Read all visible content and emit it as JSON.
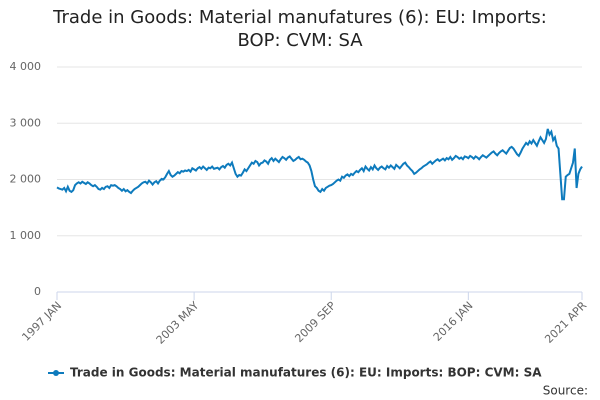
{
  "chart_data": {
    "type": "line",
    "title": "Trade in Goods: Material manufatures (6): EU: Imports: BOP: CVM: SA",
    "source": "Source:",
    "categories": [
      "1997 JAN",
      null,
      null,
      null,
      null,
      null,
      null,
      null,
      null,
      null,
      null,
      null,
      null,
      null,
      null,
      null,
      null,
      null,
      null,
      null,
      null,
      null,
      null,
      null,
      null,
      null,
      null,
      null,
      null,
      null,
      null,
      null,
      null,
      null,
      null,
      null,
      null,
      null,
      null,
      null,
      null,
      null,
      null,
      null,
      null,
      null,
      null,
      null,
      null,
      null,
      null,
      null,
      null,
      null,
      null,
      null,
      null,
      null,
      null,
      null,
      null,
      null,
      null,
      null,
      null,
      null,
      null,
      null,
      null,
      null,
      null,
      null,
      null,
      null,
      null,
      null,
      "2003 MAY",
      null,
      null,
      null,
      null,
      null,
      null,
      null,
      null,
      null,
      null,
      null,
      null,
      null,
      null,
      null,
      null,
      null,
      null,
      null,
      null,
      null,
      null,
      null,
      null,
      null,
      null,
      null,
      null,
      null,
      null,
      null,
      null,
      null,
      null,
      null,
      null,
      null,
      null,
      null,
      null,
      null,
      null,
      null,
      null,
      null,
      null,
      null,
      null,
      null,
      null,
      null,
      null,
      null,
      null,
      null,
      null,
      null,
      null,
      null,
      null,
      null,
      null,
      null,
      null,
      null,
      null,
      null,
      null,
      null,
      null,
      null,
      null,
      null,
      null,
      null,
      "2009 SEP",
      null,
      null,
      null,
      null,
      null,
      null,
      null,
      null,
      null,
      null,
      null,
      null,
      null,
      null,
      null,
      null,
      null,
      null,
      null,
      null,
      null,
      null,
      null,
      null,
      null,
      null,
      null,
      null,
      null,
      null,
      null,
      null,
      null,
      null,
      null,
      null,
      null,
      null,
      null,
      null,
      null,
      null,
      null,
      null,
      null,
      null,
      null,
      null,
      null,
      null,
      null,
      null,
      null,
      null,
      null,
      null,
      null,
      null,
      null,
      null,
      null,
      null,
      null,
      null,
      null,
      null,
      null,
      null,
      null,
      null,
      null,
      null,
      null,
      null,
      null,
      "2016 JAN",
      null,
      null,
      null,
      null,
      null,
      null,
      null,
      null,
      null,
      null,
      null,
      null,
      null,
      null,
      null,
      null,
      null,
      null,
      null,
      null,
      null,
      null,
      null,
      null,
      null,
      null,
      null,
      null,
      null,
      null,
      null,
      null,
      null,
      null,
      null,
      null,
      null,
      null,
      null,
      null,
      null,
      null,
      null,
      null,
      null,
      null,
      null,
      null,
      null,
      null,
      null,
      null,
      null,
      null,
      null,
      null,
      null,
      null,
      null,
      null,
      null,
      null,
      "2021 APR"
    ],
    "series": [
      {
        "name": "Trade in Goods: Material manufatures (6): EU: Imports: BOP: CVM: SA",
        "color": "#0e7bbd",
        "values": [
          1860,
          1840,
          1830,
          1820,
          1850,
          1790,
          1870,
          1800,
          1780,
          1810,
          1900,
          1930,
          1950,
          1930,
          1960,
          1940,
          1920,
          1950,
          1930,
          1900,
          1880,
          1900,
          1870,
          1830,
          1820,
          1850,
          1830,
          1870,
          1880,
          1850,
          1900,
          1890,
          1900,
          1880,
          1850,
          1830,
          1800,
          1830,
          1790,
          1810,
          1780,
          1760,
          1800,
          1830,
          1850,
          1870,
          1900,
          1930,
          1950,
          1960,
          1930,
          1980,
          1950,
          1910,
          1950,
          1970,
          1930,
          1980,
          2010,
          2000,
          2040,
          2100,
          2150,
          2080,
          2050,
          2070,
          2100,
          2130,
          2110,
          2150,
          2140,
          2160,
          2150,
          2170,
          2140,
          2200,
          2180,
          2160,
          2200,
          2220,
          2190,
          2230,
          2200,
          2170,
          2210,
          2200,
          2230,
          2190,
          2200,
          2210,
          2180,
          2220,
          2240,
          2210,
          2260,
          2280,
          2250,
          2300,
          2200,
          2100,
          2050,
          2080,
          2070,
          2120,
          2180,
          2150,
          2200,
          2250,
          2300,
          2280,
          2330,
          2310,
          2250,
          2290,
          2300,
          2340,
          2320,
          2280,
          2350,
          2380,
          2330,
          2370,
          2340,
          2310,
          2360,
          2400,
          2380,
          2350,
          2390,
          2410,
          2370,
          2330,
          2350,
          2380,
          2400,
          2360,
          2370,
          2350,
          2320,
          2300,
          2250,
          2150,
          2000,
          1880,
          1850,
          1800,
          1780,
          1830,
          1800,
          1850,
          1870,
          1890,
          1900,
          1920,
          1950,
          1980,
          2000,
          1980,
          2050,
          2030,
          2070,
          2090,
          2060,
          2100,
          2080,
          2120,
          2150,
          2130,
          2170,
          2200,
          2150,
          2230,
          2190,
          2160,
          2220,
          2180,
          2250,
          2200,
          2170,
          2210,
          2230,
          2200,
          2180,
          2240,
          2210,
          2250,
          2220,
          2190,
          2260,
          2230,
          2200,
          2240,
          2280,
          2300,
          2250,
          2220,
          2180,
          2150,
          2100,
          2120,
          2150,
          2180,
          2200,
          2230,
          2250,
          2270,
          2300,
          2320,
          2280,
          2310,
          2340,
          2360,
          2330,
          2350,
          2370,
          2340,
          2380,
          2360,
          2400,
          2350,
          2380,
          2420,
          2400,
          2370,
          2390,
          2360,
          2410,
          2400,
          2380,
          2420,
          2400,
          2370,
          2410,
          2390,
          2360,
          2400,
          2430,
          2410,
          2390,
          2420,
          2450,
          2480,
          2500,
          2460,
          2430,
          2470,
          2500,
          2520,
          2490,
          2460,
          2510,
          2560,
          2580,
          2550,
          2500,
          2450,
          2420,
          2480,
          2550,
          2600,
          2650,
          2620,
          2680,
          2640,
          2700,
          2650,
          2600,
          2680,
          2750,
          2700,
          2650,
          2720,
          2900,
          2800,
          2850,
          2700,
          2750,
          2600,
          2550,
          2100,
          1650,
          1650,
          2050,
          2080,
          2100,
          2200,
          2300,
          2550,
          1850,
          2100,
          2180,
          2230
        ]
      }
    ],
    "ylim": [
      0,
      4000
    ],
    "yticks": [
      0,
      {
        "value": 1000,
        "label": "1 000"
      },
      {
        "value": 2000,
        "label": "2 000"
      },
      {
        "value": 3000,
        "label": "3 000"
      },
      {
        "value": 4000,
        "label": "4 000"
      }
    ],
    "grid": true
  }
}
